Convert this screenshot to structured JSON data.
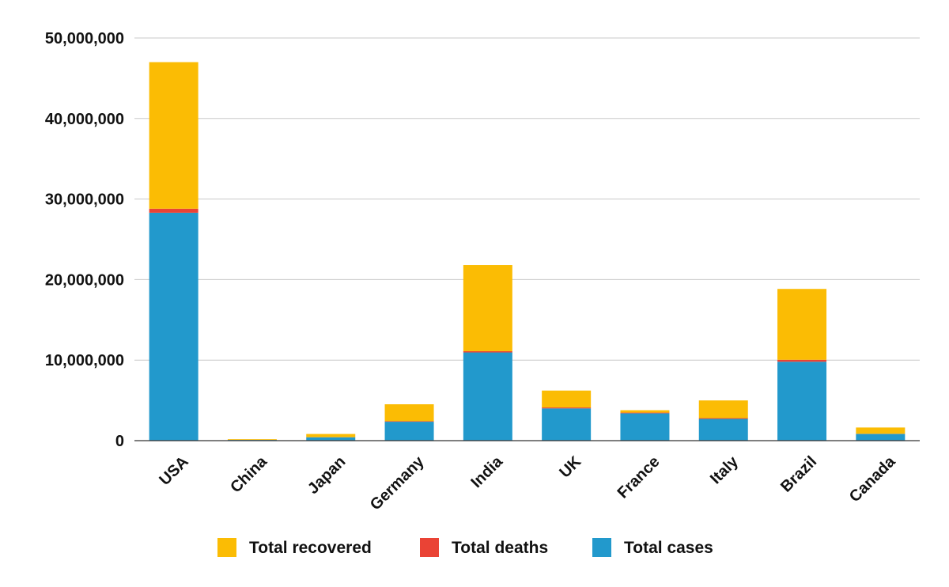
{
  "chart_data": {
    "type": "bar",
    "stacked": true,
    "categories": [
      "USA",
      "China",
      "Japan",
      "Germany",
      "India",
      "UK",
      "France",
      "Italy",
      "Brazil",
      "Canada"
    ],
    "series": [
      {
        "name": "Total cases",
        "color": "#2299cc",
        "values": [
          28300000,
          90000,
          420000,
          2350000,
          10950000,
          4000000,
          3400000,
          2700000,
          9800000,
          830000
        ]
      },
      {
        "name": "Total deaths",
        "color": "#ea4335",
        "values": [
          500000,
          4600,
          7800,
          67000,
          155000,
          118000,
          80000,
          94000,
          240000,
          21000
        ]
      },
      {
        "name": "Total recovered",
        "color": "#fbbc04",
        "values": [
          18200000,
          85000,
          400000,
          2100000,
          10700000,
          2100000,
          300000,
          2200000,
          8800000,
          780000
        ]
      }
    ],
    "ylim": [
      0,
      50000000
    ],
    "yticks": [
      "0",
      "10,000,000",
      "20,000,000",
      "30,000,000",
      "40,000,000",
      "50,000,000"
    ],
    "ytick_values": [
      0,
      10000000,
      20000000,
      30000000,
      40000000,
      50000000
    ],
    "grid": true,
    "legend": {
      "placement": "bottom",
      "entries": [
        {
          "label": "Total recovered",
          "color": "#fbbc04"
        },
        {
          "label": "Total deaths",
          "color": "#ea4335"
        },
        {
          "label": "Total cases",
          "color": "#2299cc"
        }
      ]
    },
    "title": "",
    "xlabel": "",
    "ylabel": ""
  }
}
